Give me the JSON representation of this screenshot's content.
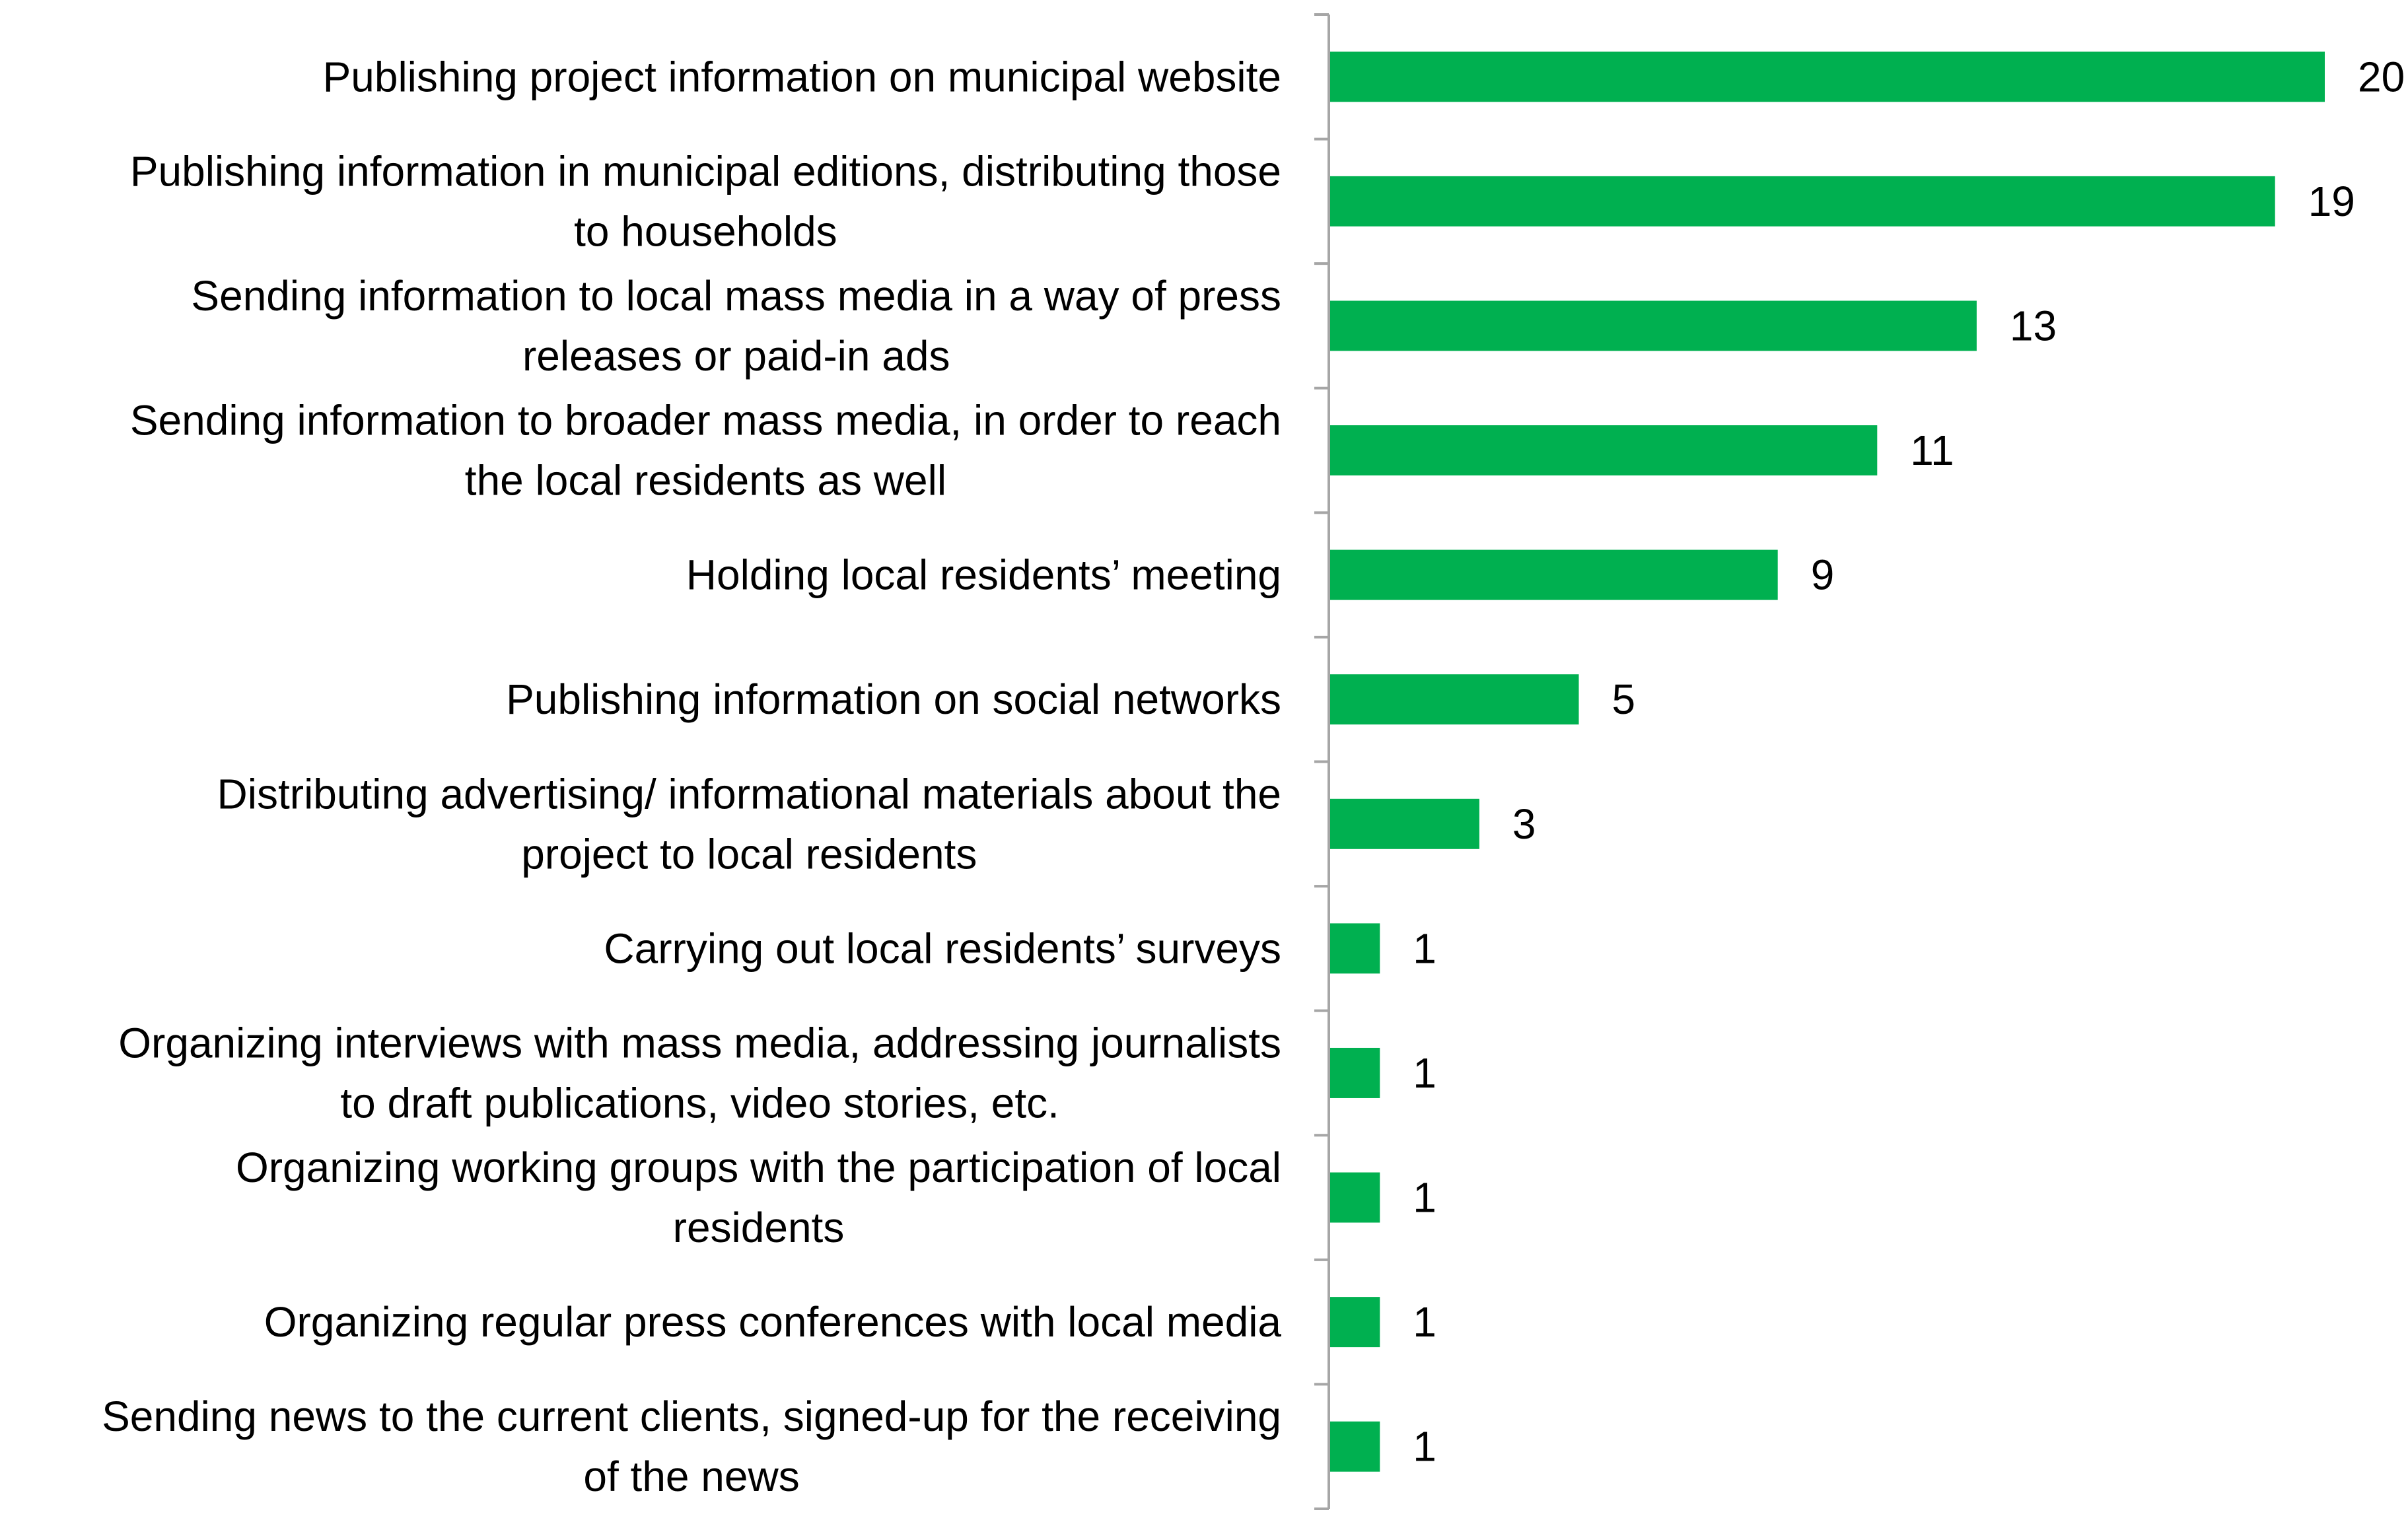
{
  "chart_data": {
    "type": "bar",
    "orientation": "horizontal",
    "title": "",
    "xlabel": "",
    "ylabel": "",
    "xlim": [
      0,
      20
    ],
    "grid": false,
    "legend": "none",
    "bar_color": "#00b050",
    "axis_color": "#a6a6a6",
    "categories": [
      [
        "Publishing project information on municipal website"
      ],
      [
        "Publishing information in municipal editions, distributing those",
        "to households"
      ],
      [
        "Sending information to local mass media in a way of press",
        "releases or paid-in ads"
      ],
      [
        "Sending information to broader mass media, in order to reach",
        "the local residents as well"
      ],
      [
        "Holding local residents’ meeting"
      ],
      [
        "Publishing information on social networks"
      ],
      [
        "Distributing advertising/ informational materials about the",
        "project to local residents"
      ],
      [
        "Carrying out local residents’ surveys"
      ],
      [
        "Organizing interviews with mass media, addressing journalists",
        "to draft publications, video stories, etc."
      ],
      [
        "Organizing working groups with the participation of local",
        "residents"
      ],
      [
        "Organizing regular press conferences with local media"
      ],
      [
        "Sending news to the current clients, signed-up for the receiving",
        "of the news"
      ]
    ],
    "values": [
      20,
      19,
      13,
      11,
      9,
      5,
      3,
      1,
      1,
      1,
      1,
      1
    ],
    "data_labels": [
      "20",
      "19",
      "13",
      "11",
      "9",
      "5",
      "3",
      "1",
      "1",
      "1",
      "1",
      "1"
    ]
  }
}
